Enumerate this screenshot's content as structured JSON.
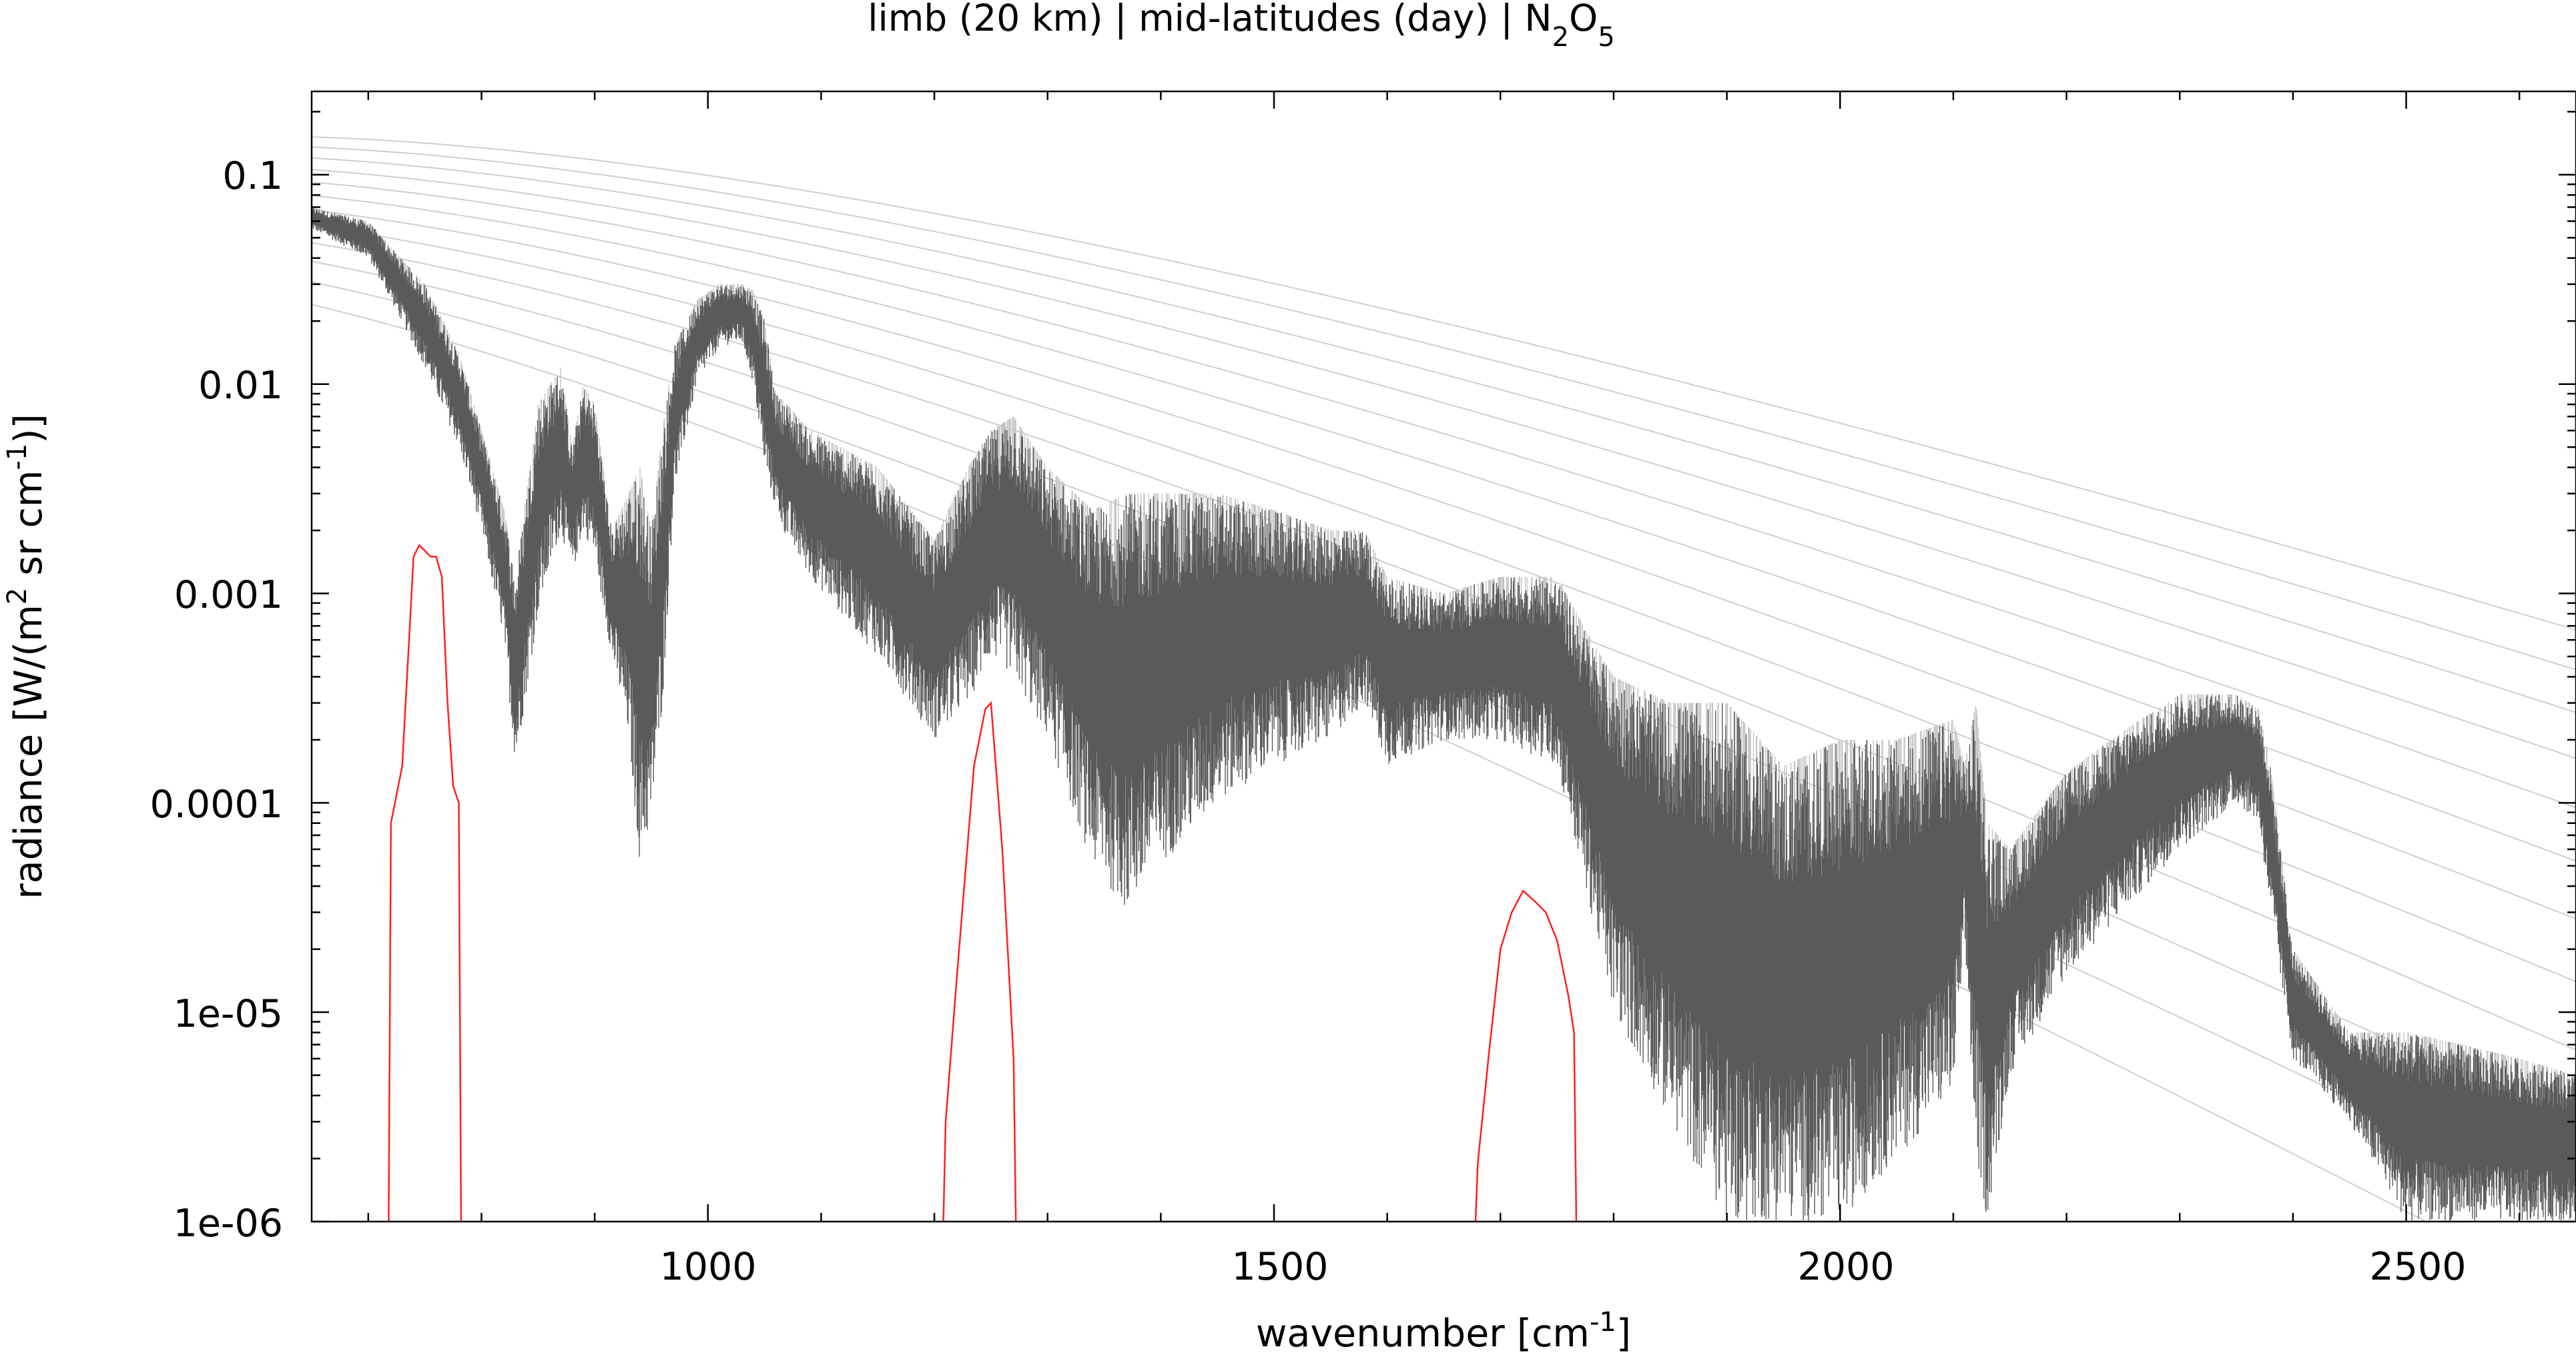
{
  "chart_data": {
    "type": "line",
    "title_parts": [
      "limb (20 km) | mid-latitudes (day) | N",
      "2",
      "O",
      "5"
    ],
    "xlabel_parts": [
      "wavenumber [cm",
      "-1",
      "]"
    ],
    "ylabel_parts": [
      "radiance [W/(m",
      "2",
      " sr cm",
      "-1",
      ")]"
    ],
    "x_ticks": [
      1000,
      1500,
      2000,
      2500
    ],
    "x_tick_labels": [
      "1000",
      "1500",
      "2000",
      "2500"
    ],
    "y_ticks": [
      0.1,
      0.01,
      0.001,
      0.0001,
      1e-05,
      1e-06
    ],
    "y_tick_labels": [
      "0.1",
      "0.01",
      "0.001",
      "0.0001",
      "1e-05",
      "1e-06"
    ],
    "xlim": [
      650,
      2650
    ],
    "ylim": [
      1e-06,
      0.25
    ],
    "y_scale": "log",
    "grid": false,
    "legend": "none",
    "colors": {
      "spectrum": "#5a5a5a",
      "spectrum_light": "#c4c4c4",
      "filter": "#ff2020",
      "planck": "#cfcfcf"
    },
    "planck_temperatures_K": [
      190,
      200,
      210,
      220,
      230,
      240,
      250,
      260,
      270,
      280,
      290,
      300
    ],
    "spectrum_envelope": {
      "x": [
        650,
        700,
        720,
        750,
        780,
        800,
        820,
        830,
        850,
        870,
        880,
        890,
        900,
        915,
        930,
        940,
        950,
        960,
        970,
        990,
        1010,
        1030,
        1040,
        1050,
        1060,
        1070,
        1090,
        1150,
        1200,
        1230,
        1250,
        1270,
        1300,
        1340,
        1370,
        1400,
        1450,
        1500,
        1550,
        1580,
        1600,
        1650,
        1700,
        1750,
        1780,
        1800,
        1850,
        1900,
        1950,
        2000,
        2050,
        2100,
        2110,
        2120,
        2130,
        2150,
        2200,
        2250,
        2300,
        2350,
        2370,
        2380,
        2400,
        2450,
        2500,
        2550,
        2600,
        2650
      ],
      "upper": [
        0.07,
        0.06,
        0.045,
        0.03,
        0.014,
        0.006,
        0.0025,
        0.0012,
        0.008,
        0.012,
        0.005,
        0.01,
        0.008,
        0.002,
        0.003,
        0.004,
        0.002,
        0.006,
        0.015,
        0.025,
        0.03,
        0.03,
        0.028,
        0.02,
        0.009,
        0.008,
        0.006,
        0.004,
        0.0018,
        0.004,
        0.006,
        0.007,
        0.004,
        0.0025,
        0.003,
        0.003,
        0.003,
        0.0025,
        0.002,
        0.002,
        0.0012,
        0.001,
        0.0012,
        0.0012,
        0.0006,
        0.0004,
        0.0003,
        0.0003,
        0.00015,
        0.0002,
        0.0002,
        0.00025,
        0.00015,
        0.0003,
        8e-05,
        6e-05,
        0.00014,
        0.00022,
        0.00033,
        0.00033,
        0.00028,
        0.00015,
        2e-05,
        8e-06,
        8e-06,
        7e-06,
        6e-06,
        5e-06
      ],
      "lower": [
        0.055,
        0.04,
        0.025,
        0.012,
        0.005,
        0.002,
        0.0006,
        0.00015,
        0.0008,
        0.002,
        0.0012,
        0.002,
        0.0015,
        0.0005,
        0.0002,
        5e-05,
        8e-05,
        0.0003,
        0.003,
        0.01,
        0.015,
        0.016,
        0.01,
        0.004,
        0.0025,
        0.0018,
        0.0012,
        0.0005,
        0.0002,
        0.0003,
        0.0005,
        0.0004,
        0.0002,
        5e-05,
        3e-05,
        5e-05,
        0.0001,
        0.00015,
        0.0002,
        0.0003,
        0.00015,
        0.0002,
        0.0002,
        0.00015,
        3e-05,
        1e-05,
        3e-06,
        1e-06,
        1e-06,
        1e-06,
        2e-06,
        4e-06,
        2e-05,
        2e-06,
        1e-06,
        5e-06,
        1.5e-05,
        3e-05,
        6e-05,
        0.0001,
        8e-05,
        3e-05,
        6e-06,
        3e-06,
        1e-06,
        1e-06,
        1e-06,
        1e-06
      ]
    },
    "filters": [
      {
        "x": [
          718,
          720,
          730,
          740,
          745,
          750,
          755,
          760,
          765,
          770,
          775,
          780,
          782
        ],
        "y": [
          1e-06,
          8e-05,
          0.00015,
          0.0015,
          0.0017,
          0.0016,
          0.0015,
          0.0015,
          0.0012,
          0.0003,
          0.00012,
          0.0001,
          1e-06
        ]
      },
      {
        "x": [
          1208,
          1210,
          1220,
          1235,
          1245,
          1250,
          1260,
          1270,
          1272
        ],
        "y": [
          1e-06,
          3e-06,
          1.5e-05,
          0.00015,
          0.00028,
          0.0003,
          6e-05,
          6e-06,
          1e-06
        ]
      },
      {
        "x": [
          1678,
          1680,
          1690,
          1700,
          1710,
          1720,
          1730,
          1740,
          1750,
          1760,
          1765,
          1767
        ],
        "y": [
          1e-06,
          1.9e-06,
          6.5e-06,
          2e-05,
          3e-05,
          3.8e-05,
          3.4e-05,
          3e-05,
          2.2e-05,
          1.2e-05,
          8e-06,
          1e-06
        ]
      }
    ]
  }
}
